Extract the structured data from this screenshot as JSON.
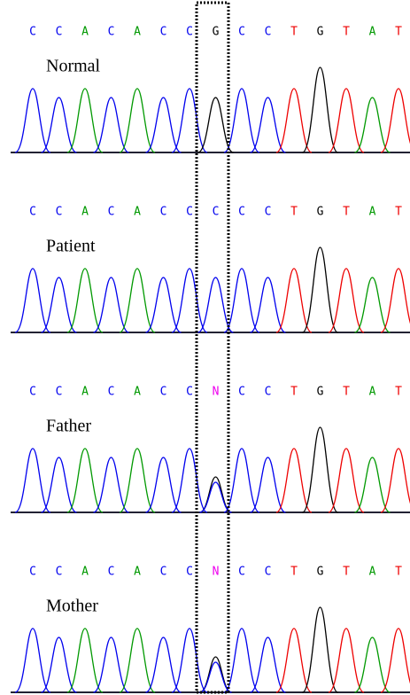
{
  "panels": [
    {
      "label": "Normal",
      "bases": [
        "C",
        "C",
        "A",
        "C",
        "A",
        "C",
        "C",
        "G",
        "C",
        "C",
        "T",
        "G",
        "T",
        "A",
        "T"
      ]
    },
    {
      "label": "Patient",
      "bases": [
        "C",
        "C",
        "A",
        "C",
        "A",
        "C",
        "C",
        "C",
        "C",
        "C",
        "T",
        "G",
        "T",
        "A",
        "T"
      ]
    },
    {
      "label": "Father",
      "bases": [
        "C",
        "C",
        "A",
        "C",
        "A",
        "C",
        "C",
        "N",
        "C",
        "C",
        "T",
        "G",
        "T",
        "A",
        "T"
      ]
    },
    {
      "label": "Mother",
      "bases": [
        "C",
        "C",
        "A",
        "C",
        "A",
        "C",
        "C",
        "N",
        "C",
        "C",
        "T",
        "G",
        "T",
        "A",
        "T"
      ]
    }
  ]
}
